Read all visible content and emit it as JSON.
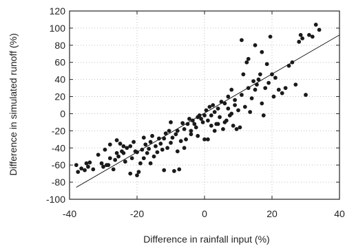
{
  "chart_data": {
    "type": "scatter",
    "title": "",
    "xlabel": "Difference in rainfall input (%)",
    "ylabel": "Difference in simulated runoff (%)",
    "xlim": [
      -40,
      40
    ],
    "ylim": [
      -100,
      120
    ],
    "x_ticks": [
      -40,
      -20,
      0,
      20,
      40
    ],
    "y_ticks": [
      -100,
      -80,
      -60,
      -40,
      -20,
      0,
      20,
      40,
      60,
      80,
      100,
      120
    ],
    "grid": true,
    "grid_style": "dotted",
    "legend": "none",
    "colors": {
      "points": "#1a1a1a",
      "line": "#1a1a1a",
      "grid": "#bdbdbd",
      "axes": "#222222"
    },
    "trend_line": {
      "x": [
        -38,
        40
      ],
      "y": [
        -86,
        92
      ]
    },
    "points": [
      [
        -38,
        -60
      ],
      [
        -37.5,
        -68
      ],
      [
        -36.5,
        -64
      ],
      [
        -35.5,
        -66
      ],
      [
        -35,
        -58
      ],
      [
        -34.5,
        -62
      ],
      [
        -34,
        -57
      ],
      [
        -33,
        -65
      ],
      [
        -31.5,
        -48
      ],
      [
        -30.5,
        -58
      ],
      [
        -30,
        -62
      ],
      [
        -29.5,
        -42
      ],
      [
        -29,
        -60
      ],
      [
        -28.5,
        -60
      ],
      [
        -28,
        -52
      ],
      [
        -27,
        -65
      ],
      [
        -26.5,
        -54
      ],
      [
        -26,
        -46
      ],
      [
        -25.5,
        -50
      ],
      [
        -25,
        -35
      ],
      [
        -24.5,
        -44
      ],
      [
        -24,
        -38
      ],
      [
        -23.5,
        -56
      ],
      [
        -23,
        -40
      ],
      [
        -22,
        -38
      ],
      [
        -21.5,
        -52
      ],
      [
        -21,
        -33
      ],
      [
        -20.5,
        -44
      ],
      [
        -20,
        -45
      ],
      [
        -19.5,
        -68
      ],
      [
        -19,
        -58
      ],
      [
        -18.5,
        -42
      ],
      [
        -18,
        -28
      ],
      [
        -18,
        -52
      ],
      [
        -17.5,
        -36
      ],
      [
        -17,
        -46
      ],
      [
        -16.5,
        -41
      ],
      [
        -16,
        -33
      ],
      [
        -15.5,
        -26
      ],
      [
        -15,
        -50
      ],
      [
        -14.5,
        -38
      ],
      [
        -14,
        -45
      ],
      [
        -13.5,
        -29
      ],
      [
        -13,
        -35
      ],
      [
        -12.5,
        -42
      ],
      [
        -12,
        -29
      ],
      [
        -11.5,
        -23
      ],
      [
        -11,
        -40
      ],
      [
        -10.5,
        -20
      ],
      [
        -10,
        -10
      ],
      [
        -10,
        -34
      ],
      [
        -9.5,
        -28
      ],
      [
        -9,
        -67
      ],
      [
        -8.5,
        -24
      ],
      [
        -8,
        -20
      ],
      [
        -7.5,
        -65
      ],
      [
        -7,
        -32
      ],
      [
        -6.5,
        -11
      ],
      [
        -6,
        -18
      ],
      [
        -5.5,
        -30
      ],
      [
        -5,
        -12
      ],
      [
        -4.5,
        -6
      ],
      [
        -4,
        -20
      ],
      [
        -3.5,
        -8
      ],
      [
        -3,
        -12
      ],
      [
        -2.5,
        -16
      ],
      [
        -2,
        -26
      ],
      [
        -1.5,
        -2
      ],
      [
        -1,
        -6
      ],
      [
        -0.5,
        -10
      ],
      [
        0,
        -2
      ],
      [
        0,
        -30
      ],
      [
        0.5,
        4
      ],
      [
        1,
        -8
      ],
      [
        1,
        -30
      ],
      [
        1.5,
        8
      ],
      [
        2,
        -2
      ],
      [
        2.5,
        10
      ],
      [
        3,
        2
      ],
      [
        3.5,
        -12
      ],
      [
        4,
        6
      ],
      [
        4.5,
        -4
      ],
      [
        5,
        14
      ],
      [
        5.5,
        -18
      ],
      [
        6,
        12
      ],
      [
        6.5,
        -8
      ],
      [
        7,
        20
      ],
      [
        7.5,
        -2
      ],
      [
        8,
        28
      ],
      [
        8.5,
        -14
      ],
      [
        9,
        16
      ],
      [
        9.5,
        -18
      ],
      [
        10,
        4
      ],
      [
        10.5,
        -16
      ],
      [
        11,
        22
      ],
      [
        11.5,
        46
      ],
      [
        12,
        8
      ],
      [
        12.5,
        60
      ],
      [
        13,
        30
      ],
      [
        13.5,
        2
      ],
      [
        14,
        18
      ],
      [
        14.5,
        38
      ],
      [
        15,
        28
      ],
      [
        15.5,
        34
      ],
      [
        16,
        40
      ],
      [
        16.5,
        46
      ],
      [
        17,
        12
      ],
      [
        17.5,
        -2
      ],
      [
        18,
        30
      ],
      [
        18.5,
        58
      ],
      [
        19,
        36
      ],
      [
        19.5,
        90
      ],
      [
        20,
        46
      ],
      [
        20.5,
        20
      ],
      [
        21,
        42
      ],
      [
        22,
        28
      ],
      [
        23,
        24
      ],
      [
        24,
        30
      ],
      [
        25,
        56
      ],
      [
        26,
        60
      ],
      [
        27,
        34
      ],
      [
        28,
        84
      ],
      [
        28.5,
        92
      ],
      [
        29,
        88
      ],
      [
        30,
        22
      ],
      [
        31,
        92
      ],
      [
        32,
        90
      ],
      [
        33,
        104
      ],
      [
        34,
        98
      ],
      [
        -22,
        -70
      ],
      [
        -20,
        -72
      ],
      [
        -16,
        -58
      ],
      [
        -12,
        -66
      ],
      [
        -6,
        -40
      ],
      [
        -2,
        -4
      ],
      [
        3,
        -20
      ],
      [
        6,
        -10
      ],
      [
        8,
        0
      ],
      [
        11,
        86
      ],
      [
        13,
        64
      ],
      [
        15,
        80
      ],
      [
        17,
        72
      ],
      [
        -28,
        -36
      ],
      [
        -26,
        -31
      ],
      [
        -24,
        -46
      ],
      [
        -8,
        -44
      ],
      [
        -4,
        -24
      ],
      [
        2,
        -14
      ],
      [
        4,
        -12
      ],
      [
        7,
        6
      ],
      [
        9,
        10
      ]
    ]
  }
}
